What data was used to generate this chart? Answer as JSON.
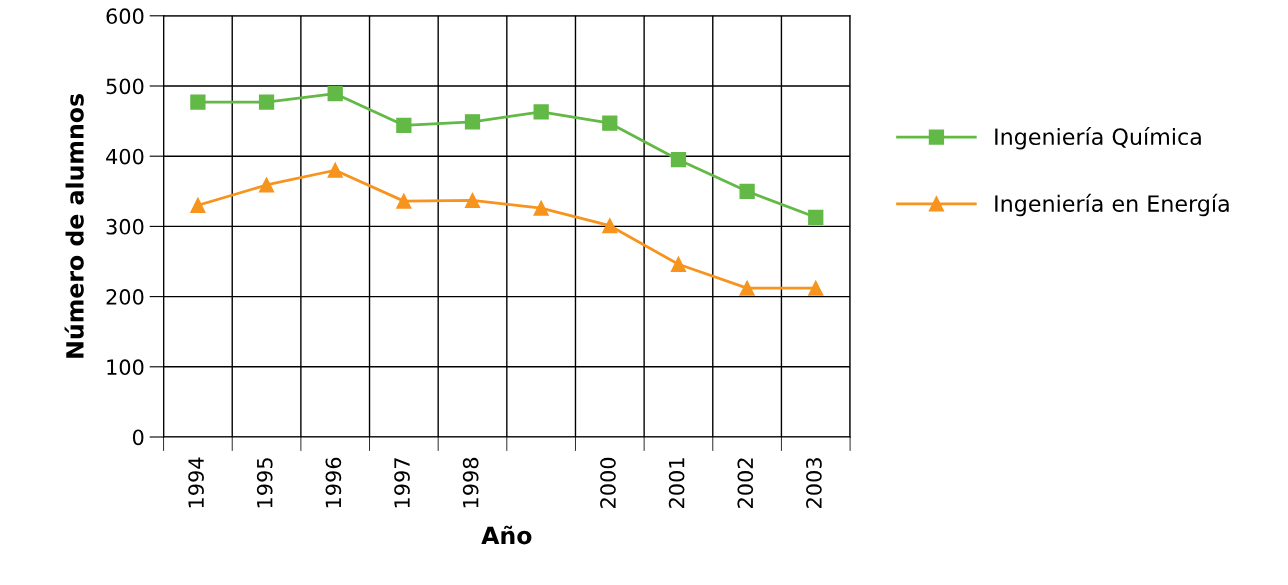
{
  "chart_data": {
    "type": "line",
    "xlabel": "Año",
    "ylabel": "Número de alumnos",
    "categories": [
      "1994",
      "1995",
      "1996",
      "1997",
      "1998",
      null,
      "2000",
      "2001",
      "2002",
      "2003"
    ],
    "series": [
      {
        "name": "Ingeniería Química",
        "color": "#62b946",
        "marker": "square",
        "values": [
          477,
          477,
          489,
          444,
          449,
          463,
          447,
          395,
          350,
          313
        ]
      },
      {
        "name": "Ingeniería en Energía",
        "color": "#f7941d",
        "marker": "triangle",
        "values": [
          330,
          359,
          380,
          336,
          337,
          326,
          301,
          246,
          212,
          212
        ]
      }
    ],
    "ylim": [
      0,
      600
    ],
    "yticks": [
      0,
      100,
      200,
      300,
      400,
      500,
      600
    ],
    "grid": true,
    "legend": "right",
    "line_style": "solid"
  }
}
